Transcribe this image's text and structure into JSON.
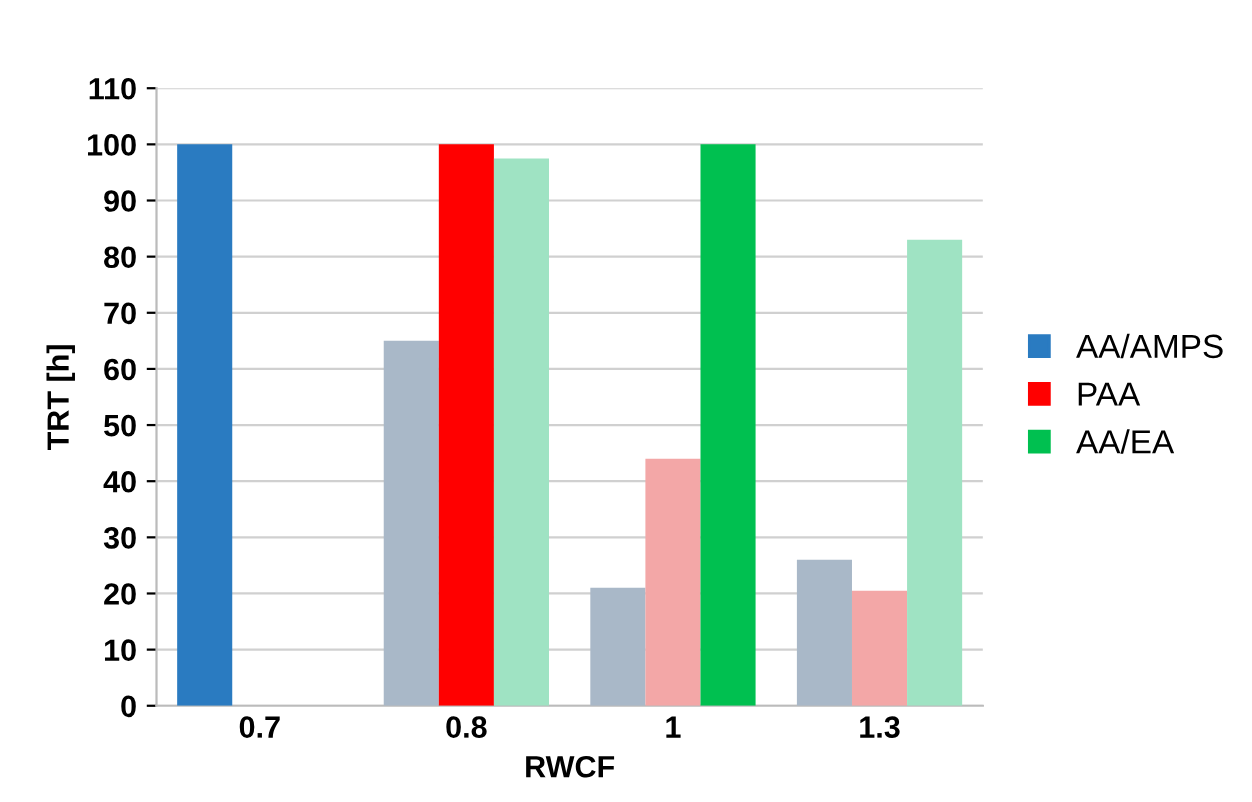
{
  "chart_data": {
    "type": "bar",
    "xlabel": "RWCF",
    "ylabel": "TRT [h]",
    "categories": [
      "0.7",
      "0.8",
      "1",
      "1.3"
    ],
    "series": [
      {
        "name": "AA/AMPS",
        "color": "#2a7bc1",
        "colors": [
          "#2a7bc1",
          "#a9b8c8",
          "#a9b8c8",
          "#a9b8c8"
        ],
        "values": [
          100,
          65,
          21,
          26
        ]
      },
      {
        "name": "PAA",
        "color": "#ff0000",
        "colors": [
          "#ff0000",
          "#ff0000",
          "#f3a7a7",
          "#f3a7a7"
        ],
        "values": [
          null,
          100,
          44,
          20.5
        ]
      },
      {
        "name": "AA/EA",
        "color": "#00c050",
        "colors": [
          "#00c050",
          "#9fe3c3",
          "#00c050",
          "#9fe3c3"
        ],
        "values": [
          null,
          97.5,
          100,
          83
        ]
      }
    ],
    "ylim": [
      0,
      110
    ],
    "yticks": [
      0,
      10,
      20,
      30,
      40,
      50,
      60,
      70,
      80,
      90,
      100,
      110
    ],
    "grid": "y",
    "legend": "right"
  }
}
